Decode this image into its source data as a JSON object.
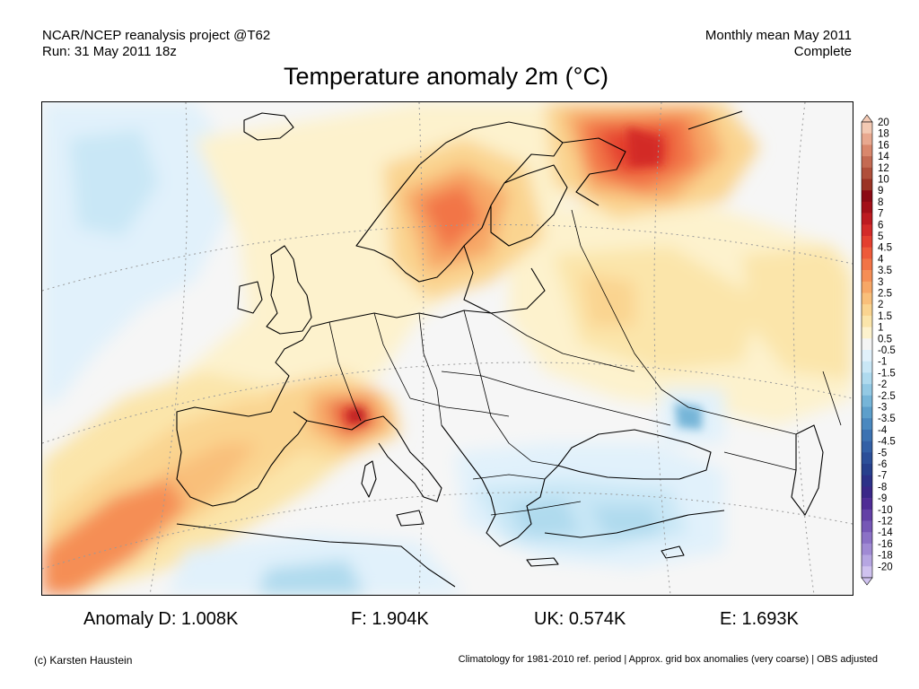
{
  "header": {
    "left_line1": "NCAR/NCEP reanalysis project @T62",
    "left_line2": "Run: 31 May 2011 18z",
    "right_line1": "Monthly mean May 2011",
    "right_line2": "Complete"
  },
  "title": "Temperature anomaly 2m (°C)",
  "map": {
    "region": "Europe",
    "projection_graticule": "dotted",
    "field": "2m temperature anomaly",
    "hotspots": [
      {
        "area": "north-west Russia / Kola",
        "anomaly": 6
      },
      {
        "area": "Alps / Switzerland",
        "anomaly": 5
      },
      {
        "area": "Iberia south-west coast",
        "anomaly": 3
      },
      {
        "area": "Scandinavia",
        "anomaly": 3.5
      }
    ],
    "coldspots": [
      {
        "area": "eastern Ukraine",
        "anomaly": -2.5
      },
      {
        "area": "Greece / Anatolia",
        "anomaly": -1.5
      },
      {
        "area": "Mediterranean south of Italy",
        "anomaly": -1.5
      }
    ]
  },
  "colorbar": {
    "labels": [
      "20",
      "18",
      "16",
      "14",
      "12",
      "10",
      "9",
      "8",
      "7",
      "6",
      "5",
      "4.5",
      "4",
      "3.5",
      "3",
      "2.5",
      "2",
      "1.5",
      "1",
      "0.5",
      "-0.5",
      "-1",
      "-1.5",
      "-2",
      "-2.5",
      "-3",
      "-3.5",
      "-4",
      "-4.5",
      "-5",
      "-6",
      "-7",
      "-8",
      "-9",
      "-10",
      "-12",
      "-14",
      "-16",
      "-18",
      "-20"
    ],
    "colors": [
      "#f3c9b3",
      "#e8a88f",
      "#d9876c",
      "#c46a52",
      "#b04f3a",
      "#9b3324",
      "#8b0a14",
      "#a30f18",
      "#bd1a20",
      "#d32a28",
      "#e43f2f",
      "#ee5a3a",
      "#f27446",
      "#f58e55",
      "#f7a766",
      "#f9bf7a",
      "#fad490",
      "#fbe5aa",
      "#fdf2cd",
      "#f4f4f4",
      "#e1f1fb",
      "#c9e7f6",
      "#afdaee",
      "#93c9e4",
      "#76b5d8",
      "#5d9fcb",
      "#4a88bf",
      "#3c72b2",
      "#3360a6",
      "#2c4f99",
      "#27408d",
      "#2c3188",
      "#3a2788",
      "#4f2c96",
      "#6340a6",
      "#7657b6",
      "#8b71c6",
      "#a08ad4",
      "#b6a6e2",
      "#cfc2ef"
    ]
  },
  "stats": {
    "d": "Anomaly D: 1.008K",
    "f": "F: 1.904K",
    "uk": "UK: 0.574K",
    "e": "E: 1.693K"
  },
  "footer": {
    "left": "(c) Karsten Haustein",
    "right": "Climatology for 1981-2010 ref. period | Approx. grid box anomalies (very coarse) | OBS adjusted"
  }
}
